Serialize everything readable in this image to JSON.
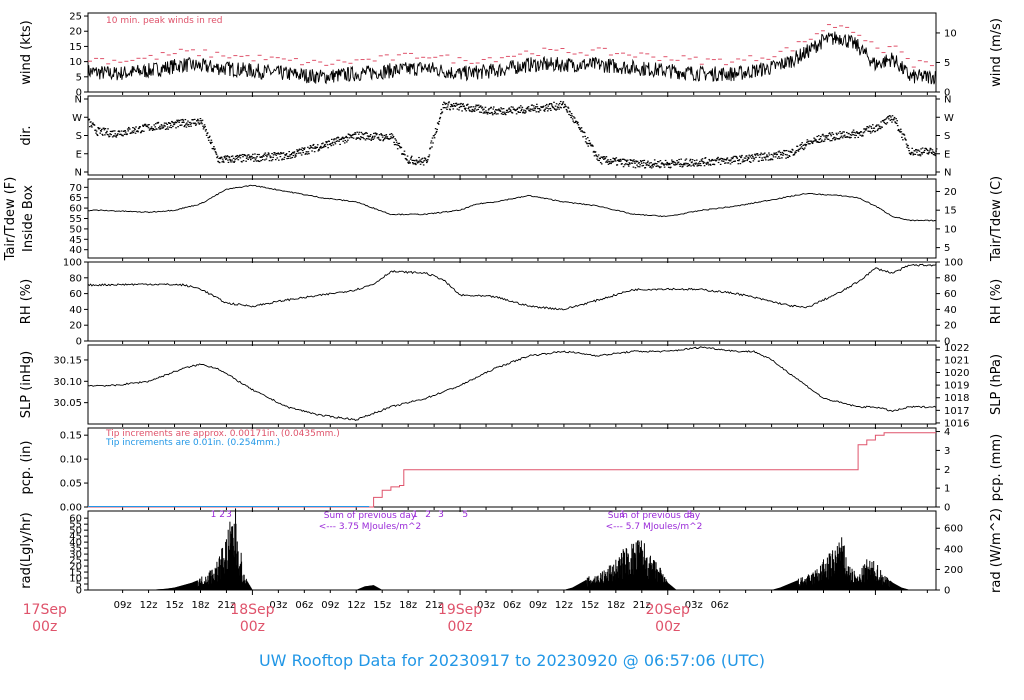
{
  "title": "UW Rooftop Data for 20230917  to  20230920 @ 06:57:06  (UTC)",
  "colors": {
    "red": "#df536b",
    "blue": "#2297e6",
    "purple": "#9a2ad8",
    "black": "#000000"
  },
  "chart_data": [
    {
      "name": "wind",
      "type": "line",
      "ylabel": "wind (kts)",
      "ylabel_right": "wind (m/s)",
      "ylim": [
        0,
        26
      ],
      "yticks": [
        "0",
        "5",
        "10",
        "15",
        "20",
        "25"
      ],
      "yticks_right": [
        "0",
        "5",
        "10"
      ],
      "annotation": "10 min. peak winds in red",
      "series": [
        {
          "x_hours": [
            0,
            4,
            8,
            12,
            16,
            20,
            24,
            28,
            32,
            36,
            40,
            44,
            48,
            52,
            56,
            60,
            64,
            68,
            72,
            76,
            78,
            80,
            82,
            84,
            86,
            88,
            90,
            92,
            94,
            96,
            98,
            100
          ],
          "values": [
            6,
            7,
            6,
            7,
            9,
            8,
            7,
            6,
            5,
            6,
            7,
            8,
            6,
            7,
            9,
            9,
            9,
            8,
            7,
            6,
            6,
            6,
            7,
            8,
            10,
            13,
            17,
            18,
            15,
            9,
            11,
            5
          ]
        }
      ]
    },
    {
      "name": "direction",
      "type": "scatter",
      "ylabel": "dir.",
      "yticks": [
        "N",
        "E",
        "S",
        "W",
        "N"
      ],
      "yticks_right": [
        "N",
        "E",
        "S",
        "W",
        "N"
      ],
      "series": [
        {
          "x_hours": [
            0,
            2,
            3,
            4,
            6,
            8,
            12,
            16,
            18,
            20,
            24,
            28,
            32,
            36,
            40,
            42,
            44,
            46,
            48,
            50,
            52,
            56,
            60,
            64,
            68,
            72,
            76,
            80,
            84,
            86,
            88,
            90,
            92,
            94,
            96,
            98,
            100
          ],
          "values": [
            30,
            40,
            60,
            290,
            200,
            190,
            220,
            240,
            250,
            60,
            70,
            80,
            130,
            180,
            170,
            60,
            50,
            330,
            320,
            310,
            300,
            310,
            330,
            60,
            40,
            40,
            50,
            60,
            80,
            90,
            140,
            170,
            180,
            190,
            220,
            270,
            100
          ]
        }
      ]
    },
    {
      "name": "temperature",
      "type": "line",
      "ylabel": "Tair/Tdew (F)",
      "ylabel2": "Inside Box",
      "ylabel_right": "Tair/Tdew (C)",
      "ylim": [
        36,
        74
      ],
      "yticks": [
        "40",
        "45",
        "50",
        "55",
        "60",
        "65",
        "70"
      ],
      "yticks_right": [
        "5",
        "10",
        "15",
        "20"
      ],
      "series": [
        {
          "x_hours": [
            0,
            6,
            12,
            15,
            18,
            21,
            24,
            28,
            32,
            36,
            38,
            40,
            44,
            48,
            50,
            52,
            56,
            60,
            64,
            68,
            72,
            76,
            80,
            84,
            88,
            92,
            94,
            96,
            98,
            100
          ],
          "values": [
            58,
            59,
            58,
            59,
            62,
            69,
            71,
            68,
            65,
            63,
            60,
            57,
            57,
            59,
            62,
            63,
            66,
            63,
            61,
            57,
            56,
            59,
            61,
            64,
            67,
            66,
            65,
            61,
            56,
            54
          ]
        }
      ]
    },
    {
      "name": "rh",
      "type": "line",
      "ylabel": "RH (%)",
      "ylabel_right": "RH (%)",
      "ylim": [
        0,
        100
      ],
      "yticks": [
        "0",
        "20",
        "40",
        "60",
        "80",
        "100"
      ],
      "yticks_right": [
        "0",
        "20",
        "40",
        "60",
        "80",
        "100"
      ],
      "series": [
        {
          "x_hours": [
            0,
            6,
            12,
            16,
            18,
            21,
            24,
            28,
            32,
            36,
            38,
            40,
            44,
            46,
            48,
            52,
            56,
            60,
            64,
            68,
            72,
            76,
            80,
            84,
            86,
            88,
            90,
            92,
            94,
            96,
            98,
            100
          ],
          "values": [
            70,
            71,
            72,
            71,
            66,
            48,
            44,
            52,
            58,
            65,
            72,
            88,
            86,
            78,
            58,
            56,
            44,
            40,
            52,
            65,
            66,
            65,
            60,
            50,
            45,
            42,
            52,
            62,
            75,
            92,
            86,
            96
          ]
        }
      ]
    },
    {
      "name": "slp",
      "type": "line",
      "ylabel": "SLP (inHg)",
      "ylabel_right": "SLP (hPa)",
      "ylim": [
        30.0,
        30.185
      ],
      "yticks": [
        "30.05",
        "30.10",
        "30.15"
      ],
      "yticks_right": [
        "1016",
        "1017",
        "1018",
        "1019",
        "1020",
        "1021",
        "1022"
      ],
      "series": [
        {
          "x_hours": [
            0,
            4,
            8,
            12,
            16,
            18,
            20,
            24,
            28,
            32,
            36,
            40,
            44,
            48,
            52,
            56,
            60,
            64,
            68,
            72,
            76,
            80,
            82,
            84,
            88,
            90,
            92,
            94,
            96,
            98,
            100
          ],
          "values": [
            30.1,
            30.09,
            30.09,
            30.1,
            30.13,
            30.14,
            30.13,
            30.08,
            30.04,
            30.02,
            30.01,
            30.04,
            30.06,
            30.09,
            30.13,
            30.16,
            30.17,
            30.16,
            30.17,
            30.17,
            30.18,
            30.17,
            30.17,
            30.15,
            30.09,
            30.06,
            30.05,
            30.04,
            30.04,
            30.03,
            30.04
          ]
        }
      ]
    },
    {
      "name": "precip",
      "type": "line",
      "ylabel": "pcp. (in)",
      "ylabel_right": "pcp. (mm)",
      "ylim": [
        0,
        0.165
      ],
      "yticks": [
        "0.00",
        "0.05",
        "0.10",
        "0.15"
      ],
      "yticks_right": [
        "0",
        "1",
        "2",
        "3",
        "4"
      ],
      "annotations": [
        "Tip increments are approx. 0.00171in. (0.0435mm.)",
        "Tip increments are 0.01in. (0.254mm.)"
      ],
      "series": [
        {
          "x_hours": [
            0,
            37.5,
            38,
            39,
            40,
            41,
            41.5,
            93,
            94,
            95,
            96,
            97
          ],
          "values": [
            0,
            0,
            0.02,
            0.035,
            0.042,
            0.045,
            0.078,
            0.078,
            0.13,
            0.14,
            0.15,
            0.155
          ]
        }
      ]
    },
    {
      "name": "radiation",
      "type": "area",
      "ylabel": "rad(Lgly/hr)",
      "ylabel_right": "rad (W/m^2)",
      "ylim": [
        0,
        66
      ],
      "yticks": [
        "0",
        "5",
        "10",
        "15",
        "20",
        "25",
        "30",
        "35",
        "40",
        "45",
        "50",
        "55",
        "60"
      ],
      "yticks_right": [
        "0",
        "200",
        "400",
        "600"
      ],
      "annotations": [
        "Sum of previous day\n<--- 3.75 MJoules/m^2",
        "Sum of previous day\n<--- 5.7 MJoules/m^2"
      ],
      "peak_labels": [
        "1",
        "2",
        "3",
        "1",
        "2",
        "3",
        "5",
        "1",
        "3"
      ],
      "series": [
        {
          "x_hours": [
            12,
            14,
            15,
            16,
            17,
            18,
            19,
            20,
            21,
            22,
            23,
            24,
            25,
            36,
            37,
            38,
            39,
            40,
            41,
            42,
            43,
            44,
            45,
            46,
            47,
            48,
            49,
            50,
            51,
            52,
            60,
            61,
            62,
            63,
            64,
            65,
            66,
            67,
            68,
            69,
            70,
            71,
            72,
            73,
            74,
            75,
            76,
            84,
            85,
            86,
            87,
            88,
            89,
            90,
            91,
            92,
            93,
            94,
            95,
            96,
            97,
            98,
            99,
            100
          ],
          "values": [
            0,
            1,
            2,
            4,
            6,
            9,
            14,
            22,
            40,
            60,
            12,
            0,
            0,
            0,
            3,
            4,
            0,
            0,
            0,
            0,
            0,
            0,
            0,
            0,
            0,
            0,
            0,
            0,
            0,
            0,
            0,
            2,
            6,
            10,
            12,
            16,
            22,
            30,
            34,
            38,
            24,
            18,
            6,
            0,
            0,
            0,
            0,
            0,
            2,
            5,
            8,
            10,
            14,
            22,
            28,
            40,
            18,
            10,
            22,
            20,
            12,
            6,
            2,
            0
          ]
        }
      ]
    }
  ],
  "xaxis": {
    "ticks": [
      "09z",
      "12z",
      "15z",
      "18z",
      "21z",
      "03z",
      "06z",
      "09z",
      "12z",
      "15z",
      "18z",
      "21z",
      "03z",
      "06z",
      "09z",
      "12z",
      "15z",
      "18z",
      "21z",
      "03z",
      "06z"
    ],
    "day_labels": [
      {
        "date": "17Sep",
        "time": "00z"
      },
      {
        "date": "18Sep",
        "time": "00z"
      },
      {
        "date": "19Sep",
        "time": "00z"
      },
      {
        "date": "20Sep",
        "time": "00z"
      }
    ]
  }
}
